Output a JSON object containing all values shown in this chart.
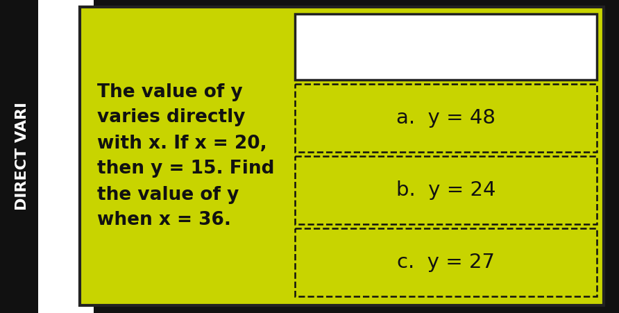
{
  "bg_outer": "#111111",
  "bg_left_strip": "#ffffff",
  "card_color": "#c8d400",
  "card_border": "#222222",
  "question_text": "The value of y\nvaries directly\nwith x. If x = 20,\nthen y = 15. Find\nthe value of y\nwhen x = 36.",
  "answers": [
    "a.  y = 48",
    "b.  y = 24",
    "c.  y = 27"
  ],
  "white_box_bg": "#ffffff",
  "white_box_border": "#222222",
  "answer_box_bg": "#c8d400",
  "answer_box_border": "#111111",
  "text_color": "#111111",
  "font_size_question": 19,
  "font_size_answer": 21,
  "left_label": "DIRECT\nVARI",
  "left_label_color": "#ffffff",
  "left_bg": "#111111"
}
